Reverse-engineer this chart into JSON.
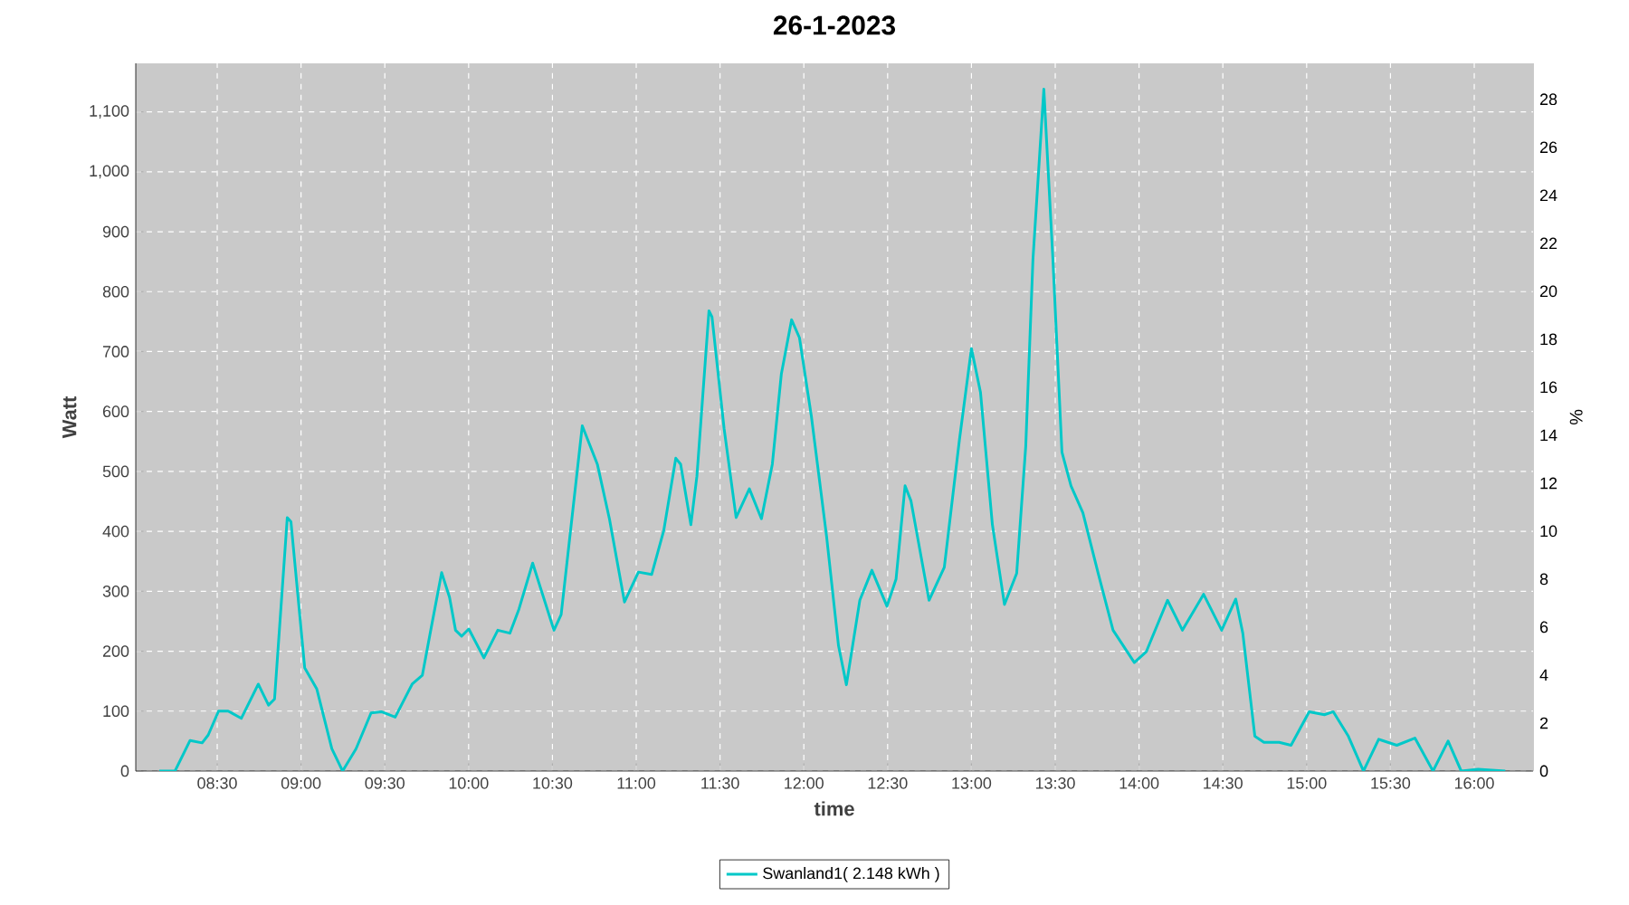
{
  "chart_data": {
    "type": "line",
    "title": "26-1-2023",
    "xlabel": "time",
    "ylabel": "Watt",
    "y2label": "%",
    "x": [
      8.154,
      8.248,
      8.338,
      8.41,
      8.446,
      8.508,
      8.565,
      8.644,
      8.745,
      8.806,
      8.842,
      8.918,
      8.94,
      9.022,
      9.094,
      9.184,
      9.248,
      9.328,
      9.418,
      9.479,
      9.562,
      9.663,
      9.724,
      9.778,
      9.839,
      9.886,
      9.922,
      9.958,
      10.001,
      10.091,
      10.174,
      10.246,
      10.3,
      10.382,
      10.509,
      10.552,
      10.678,
      10.768,
      10.84,
      10.93,
      11.013,
      11.092,
      11.164,
      11.236,
      11.265,
      11.326,
      11.362,
      11.434,
      11.452,
      11.524,
      11.596,
      11.675,
      11.747,
      11.812,
      11.866,
      11.927,
      11.974,
      12.045,
      12.136,
      12.207,
      12.254,
      12.334,
      12.406,
      12.496,
      12.55,
      12.604,
      12.639,
      12.747,
      12.838,
      12.928,
      13.0,
      13.054,
      13.125,
      13.197,
      13.27,
      13.324,
      13.367,
      13.432,
      13.486,
      13.54,
      13.594,
      13.665,
      13.756,
      13.845,
      13.972,
      14.043,
      14.17,
      14.259,
      14.385,
      14.493,
      14.577,
      14.619,
      14.691,
      14.745,
      14.836,
      14.907,
      15.015,
      15.106,
      15.159,
      15.249,
      15.339,
      15.43,
      15.538,
      15.646,
      15.754,
      15.844,
      15.922,
      16.023,
      16.185
    ],
    "series": [
      {
        "name": "Swanland1( 2.148 kWh )",
        "color": "#00c8c8",
        "values": [
          0,
          0,
          51,
          47,
          60,
          100,
          100,
          88,
          145,
          110,
          120,
          423,
          416,
          172,
          137,
          37,
          0,
          37,
          97,
          99,
          90,
          145,
          160,
          241,
          331,
          290,
          235,
          225,
          237,
          189,
          235,
          230,
          270,
          347,
          235,
          261,
          576,
          512,
          421,
          282,
          332,
          328,
          401,
          522,
          512,
          411,
          492,
          768,
          758,
          572,
          423,
          471,
          421,
          512,
          663,
          753,
          723,
          592,
          391,
          209,
          144,
          285,
          335,
          275,
          320,
          476,
          451,
          285,
          340,
          552,
          705,
          632,
          411,
          278,
          330,
          542,
          854,
          1138,
          854,
          532,
          476,
          431,
          330,
          235,
          181,
          199,
          285,
          235,
          295,
          235,
          287,
          230,
          58,
          48,
          48,
          43,
          99,
          94,
          99,
          58,
          0,
          53,
          43,
          55,
          0,
          50,
          0,
          3,
          0
        ]
      }
    ],
    "xlim": [
      8.014,
      16.351
    ],
    "ylim": [
      0,
      1181
    ],
    "y2lim": [
      0,
      29.5
    ],
    "xticks": [
      {
        "value": 8.5,
        "label": "08:30"
      },
      {
        "value": 9,
        "label": "09:00"
      },
      {
        "value": 9.5,
        "label": "09:30"
      },
      {
        "value": 10,
        "label": "10:00"
      },
      {
        "value": 10.5,
        "label": "10:30"
      },
      {
        "value": 11,
        "label": "11:00"
      },
      {
        "value": 11.5,
        "label": "11:30"
      },
      {
        "value": 12,
        "label": "12:00"
      },
      {
        "value": 12.5,
        "label": "12:30"
      },
      {
        "value": 13,
        "label": "13:00"
      },
      {
        "value": 13.5,
        "label": "13:30"
      },
      {
        "value": 14,
        "label": "14:00"
      },
      {
        "value": 14.5,
        "label": "14:30"
      },
      {
        "value": 15,
        "label": "15:00"
      },
      {
        "value": 15.5,
        "label": "15:30"
      },
      {
        "value": 16,
        "label": "16:00"
      }
    ],
    "yticks": [
      0,
      100,
      200,
      300,
      400,
      500,
      600,
      700,
      800,
      900,
      {
        "value": 1000,
        "label": "1,000"
      },
      {
        "value": 1100,
        "label": "1,100"
      }
    ],
    "y2ticks": [
      0,
      2,
      4,
      6,
      8,
      10,
      12,
      14,
      16,
      18,
      20,
      22,
      24,
      26,
      28
    ],
    "grid": true,
    "legend": "bottom",
    "marker": "none",
    "line_style": "solid"
  }
}
